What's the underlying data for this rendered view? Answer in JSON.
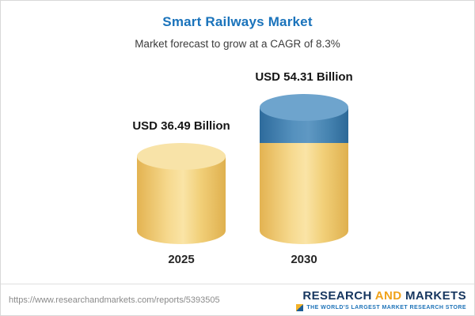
{
  "header": {
    "title": "Smart Railways Market",
    "subtitle": "Market forecast to grow at a CAGR of 8.3%"
  },
  "chart_data": {
    "type": "bar",
    "variant": "cylinder-3d",
    "title": "Smart Railways Market",
    "subtitle": "Market forecast to grow at a CAGR of 8.3%",
    "cagr": "8.3%",
    "categories": [
      "2025",
      "2030"
    ],
    "values": [
      36.49,
      54.31
    ],
    "value_labels": [
      "USD 36.49 Billion",
      "USD 54.31 Billion"
    ],
    "unit": "USD Billion",
    "ylabel": "",
    "xlabel": "",
    "legend": "none",
    "grid": false,
    "colors": {
      "base": "#F2CF76",
      "growth": "#3E7DAE"
    },
    "notes": "2030 bar shows base value in gold with incremental growth over 2025 shown as blue top segment"
  },
  "footer": {
    "url": "https://www.researchandmarkets.com/reports/5393505",
    "logo": {
      "part1": "RESEARCH",
      "part2": "AND",
      "part3": "MARKETS",
      "tagline": "THE WORLD'S LARGEST MARKET RESEARCH STORE"
    }
  }
}
